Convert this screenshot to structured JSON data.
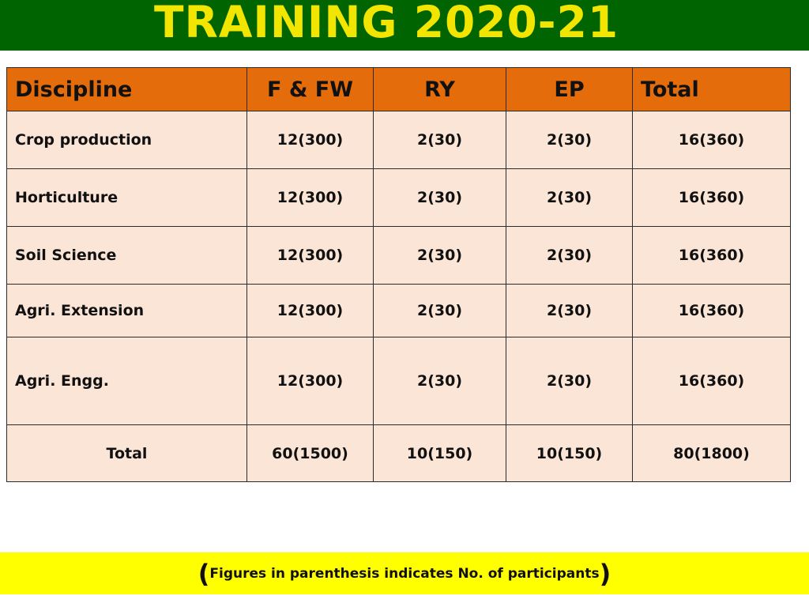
{
  "title": "TRAINING  2020-21",
  "colors": {
    "header_bg": "#006400",
    "title_text": "#f2e600",
    "table_header_bg": "#e46c0a",
    "table_body_bg": "#fbe5d6",
    "footer_bg": "#ffff00"
  },
  "table": {
    "headers": [
      "Discipline",
      "F & FW",
      "RY",
      "EP",
      "Total"
    ],
    "rows": [
      [
        "Crop production",
        "12(300)",
        "2(30)",
        "2(30)",
        "16(360)"
      ],
      [
        "Horticulture",
        "12(300)",
        "2(30)",
        "2(30)",
        "16(360)"
      ],
      [
        "Soil Science",
        "12(300)",
        "2(30)",
        "2(30)",
        "16(360)"
      ],
      [
        "Agri. Extension",
        "12(300)",
        "2(30)",
        "2(30)",
        "16(360)"
      ],
      [
        "Agri. Engg.",
        "12(300)",
        "2(30)",
        "2(30)",
        "16(360)"
      ],
      [
        "Total",
        "60(1500)",
        "10(150)",
        "10(150)",
        "80(1800)"
      ]
    ]
  },
  "footnote": {
    "open": "(",
    "text": "Figures in parenthesis indicates  No. of participants",
    "close": ")"
  }
}
